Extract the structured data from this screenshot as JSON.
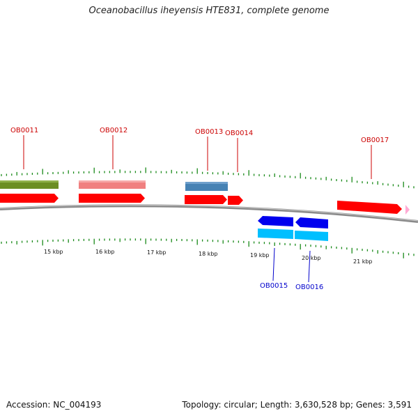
{
  "title": "Oceanobacillus iheyensis HTE831, complete genome",
  "colors": {
    "backbone": "#8a8a8a",
    "tick": "#1a8a1a",
    "forward_gene": "#ff0000",
    "reverse_gene": "#0000ee",
    "forward_label": "#cc0000",
    "reverse_label": "#0000cc"
  },
  "scale_labels": [
    "15 kbp",
    "16 kbp",
    "17 kbp",
    "18 kbp",
    "19 kbp",
    "20 kbp",
    "21 kbp"
  ],
  "genes": [
    {
      "id": "OB0011",
      "strand": "forward",
      "cog_color": "#6b8e23"
    },
    {
      "id": "OB0012",
      "strand": "forward",
      "cog_color": "#f08080"
    },
    {
      "id": "OB0013",
      "strand": "forward",
      "cog_color": "#4682b4"
    },
    {
      "id": "OB0014",
      "strand": "forward",
      "cog_color": ""
    },
    {
      "id": "OB0015",
      "strand": "reverse",
      "cog_color": "#00bfff"
    },
    {
      "id": "OB0016",
      "strand": "reverse",
      "cog_color": "#00bfff"
    },
    {
      "id": "OB0017",
      "strand": "forward",
      "cog_color": ""
    }
  ],
  "footer": {
    "accession": "Accession: NC_004193",
    "stats": "Topology: circular; Length: 3,630,528 bp; Genes: 3,591"
  }
}
